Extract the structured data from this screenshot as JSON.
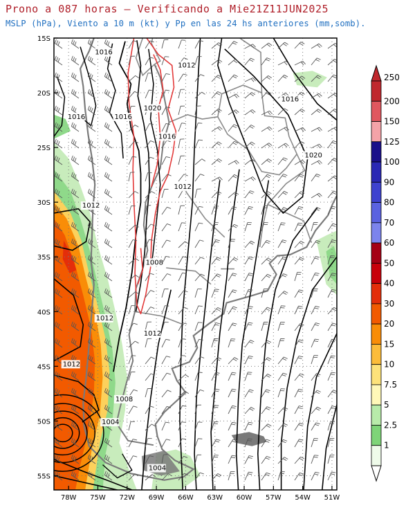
{
  "header": {
    "title": "Prono a 087 horas — Verificando a Mie21Z11JUN2025",
    "subtitle": "MSLP (hPa), Viento a 10 m (kt) y Pp en las 24 hs anteriores (mm,somb)."
  },
  "map": {
    "lat_labels": [
      "15S",
      "20S",
      "25S",
      "30S",
      "35S",
      "40S",
      "45S",
      "50S",
      "55S"
    ],
    "lon_labels": [
      "78W",
      "75W",
      "72W",
      "69W",
      "66W",
      "63W",
      "60W",
      "57W",
      "54W",
      "51W"
    ],
    "isobar_labels": [
      {
        "text": "1016",
        "lon": -75.3,
        "lat": -16.5
      },
      {
        "text": "1012",
        "lon": -66.8,
        "lat": -17.7
      },
      {
        "text": "1016",
        "lon": -78.1,
        "lat": -22.4
      },
      {
        "text": "1016",
        "lon": -73.3,
        "lat": -22.4
      },
      {
        "text": "1020",
        "lon": -70.3,
        "lat": -21.6
      },
      {
        "text": "1016",
        "lon": -68.8,
        "lat": -24.2
      },
      {
        "text": "1016",
        "lon": -56.2,
        "lat": -20.8
      },
      {
        "text": "1020",
        "lon": -53.8,
        "lat": -25.9
      },
      {
        "text": "1012",
        "lon": -67.2,
        "lat": -28.8
      },
      {
        "text": "1012",
        "lon": -76.6,
        "lat": -30.5
      },
      {
        "text": "1008",
        "lon": -70.1,
        "lat": -35.7
      },
      {
        "text": "1012",
        "lon": -75.2,
        "lat": -40.8
      },
      {
        "text": "1012",
        "lon": -70.3,
        "lat": -42.2
      },
      {
        "text": "1012",
        "lon": -78.6,
        "lat": -45.0
      },
      {
        "text": "1008",
        "lon": -73.2,
        "lat": -48.2
      },
      {
        "text": "1004",
        "lon": -74.6,
        "lat": -50.3
      },
      {
        "text": "1004",
        "lon": -69.8,
        "lat": -54.5
      }
    ]
  },
  "colorbar": {
    "labels": [
      "250",
      "200",
      "150",
      "125",
      "100",
      "90",
      "80",
      "70",
      "60",
      "50",
      "40",
      "30",
      "20",
      "15",
      "10",
      "7.5",
      "5",
      "2.5",
      "1"
    ],
    "colors": [
      "#c0282e",
      "#e0575f",
      "#f4a3a8",
      "#1a0f8a",
      "#2a28b4",
      "#3e42cf",
      "#5a62e0",
      "#7c84ec",
      "#a50014",
      "#c8000a",
      "#e42e0a",
      "#f25a00",
      "#f98d08",
      "#fcbc3a",
      "#fde27a",
      "#fff8b8",
      "#b8ebaa",
      "#7ed478",
      "#effbea"
    ]
  }
}
